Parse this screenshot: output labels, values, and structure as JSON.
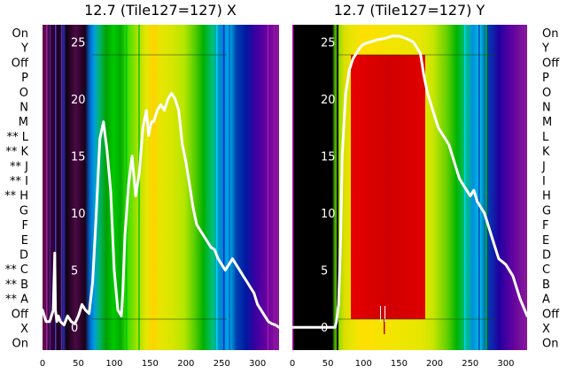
{
  "chart_data": [
    {
      "type": "line",
      "title": "12.7 (Tile127=127) X",
      "xlim": [
        0,
        330
      ],
      "ylim": [
        -2,
        26.5
      ],
      "x_ticks": [
        0,
        50,
        100,
        150,
        200,
        250,
        300
      ],
      "y_ticks": [
        0,
        5,
        10,
        15,
        20,
        25
      ],
      "row_labels": [
        "On",
        "Y",
        "Off",
        "P",
        "O",
        "N",
        "M",
        "** L",
        "** K",
        "** J",
        "** I",
        "** H",
        "G",
        "F",
        "E",
        "D",
        "** C",
        "** B",
        "** A",
        "Off",
        "X",
        "On"
      ],
      "background": "spectral heatmap of column intensity",
      "series": [
        {
          "x": [
            0,
            5,
            10,
            15,
            17,
            18,
            20,
            22,
            25,
            30,
            35,
            40,
            45,
            50,
            55,
            60,
            65,
            70,
            75,
            80,
            85,
            90,
            95,
            100,
            105,
            110,
            112,
            115,
            120,
            125,
            130,
            135,
            140,
            145,
            148,
            150,
            152,
            155,
            160,
            165,
            170,
            175,
            180,
            185,
            190,
            195,
            200,
            205,
            210,
            215,
            220,
            225,
            230,
            235,
            240,
            245,
            250,
            255,
            260,
            265,
            270,
            275,
            280,
            285,
            290,
            295,
            300,
            305,
            310,
            315,
            320,
            325,
            330
          ],
          "values": [
            1.5,
            0.5,
            0.5,
            1.5,
            6.5,
            1.5,
            0.5,
            1.0,
            0.5,
            0.2,
            1.0,
            0.5,
            0.3,
            1.0,
            2.0,
            1.5,
            1.2,
            4.0,
            10.0,
            16.5,
            18.0,
            15.5,
            12.0,
            5.0,
            1.5,
            1.0,
            3.0,
            8.0,
            12.5,
            15.0,
            11.5,
            13.5,
            17.5,
            19.0,
            16.8,
            17.5,
            18.0,
            18.0,
            19.0,
            19.5,
            19.0,
            20.0,
            20.5,
            20.0,
            19.0,
            16.0,
            14.5,
            12.5,
            10.5,
            9.0,
            8.5,
            8.0,
            7.5,
            7.0,
            6.8,
            6.0,
            5.5,
            5.0,
            5.5,
            6.0,
            5.5,
            5.0,
            4.5,
            4.0,
            3.5,
            3.0,
            2.0,
            1.5,
            1.0,
            0.5,
            0.3,
            0.2,
            0.0
          ]
        }
      ]
    },
    {
      "type": "line",
      "title": "12.7 (Tile127=127) Y",
      "xlim": [
        0,
        330
      ],
      "ylim": [
        -2,
        26.5
      ],
      "x_ticks": [
        0,
        50,
        100,
        150,
        200,
        250,
        300
      ],
      "y_ticks": [
        0,
        5,
        10,
        15,
        20,
        25
      ],
      "row_labels": [
        "On",
        "Y",
        "Off",
        "P",
        "O",
        "N",
        "M",
        "L",
        "K",
        "J",
        "I",
        "H",
        "G",
        "F",
        "E",
        "D",
        "C",
        "B",
        "A",
        "Off",
        "X",
        "On"
      ],
      "background": "spectral heatmap of column intensity",
      "series": [
        {
          "x": [
            0,
            20,
            40,
            60,
            62,
            65,
            68,
            70,
            75,
            80,
            85,
            90,
            95,
            100,
            110,
            120,
            130,
            140,
            150,
            160,
            170,
            175,
            180,
            185,
            190,
            195,
            200,
            205,
            210,
            215,
            220,
            225,
            230,
            235,
            240,
            245,
            250,
            255,
            260,
            265,
            270,
            275,
            280,
            290,
            300,
            310,
            320,
            330
          ],
          "values": [
            0.0,
            0.0,
            0.0,
            0.0,
            0.5,
            2.0,
            8.0,
            15.0,
            20.5,
            22.5,
            23.5,
            24.0,
            24.5,
            24.8,
            25.0,
            25.2,
            25.3,
            25.5,
            25.5,
            25.3,
            25.0,
            24.5,
            24.0,
            22.0,
            20.5,
            19.5,
            18.5,
            17.5,
            17.0,
            16.5,
            16.0,
            15.0,
            14.0,
            13.0,
            12.5,
            12.0,
            11.5,
            12.0,
            11.0,
            10.5,
            10.0,
            9.0,
            8.0,
            6.0,
            5.5,
            4.5,
            2.5,
            1.0
          ]
        }
      ]
    }
  ]
}
